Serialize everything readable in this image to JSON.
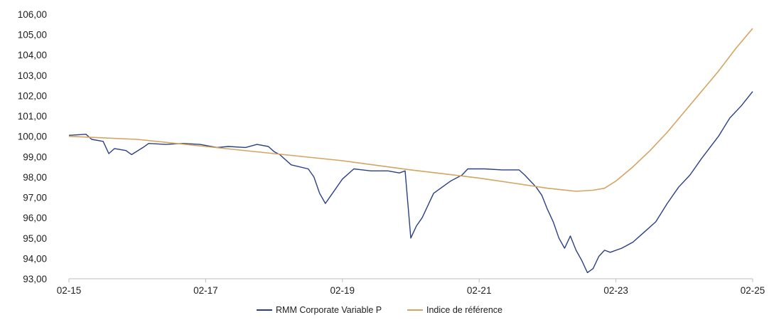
{
  "chart_data": {
    "type": "line",
    "title": "",
    "xlabel": "",
    "ylabel": "",
    "x_ticks": [
      "02-15",
      "02-17",
      "02-19",
      "02-21",
      "02-23",
      "02-25"
    ],
    "y_ticks": [
      "93,00",
      "94,00",
      "95,00",
      "96,00",
      "97,00",
      "98,00",
      "99,00",
      "100,00",
      "101,00",
      "102,00",
      "103,00",
      "104,00",
      "105,00",
      "106,00"
    ],
    "ylim": [
      93,
      106
    ],
    "xlim": [
      "2015-02",
      "2025-02"
    ],
    "grid": false,
    "legend_position": "bottom-center",
    "series": [
      {
        "name": "RMM Corporate Variable P",
        "color": "#2b3f87",
        "points": [
          [
            "2015-02",
            100.05
          ],
          [
            "2015-05",
            100.1
          ],
          [
            "2015-06",
            99.85
          ],
          [
            "2015-08",
            99.75
          ],
          [
            "2015-09",
            99.15
          ],
          [
            "2015-10",
            99.4
          ],
          [
            "2015-12",
            99.3
          ],
          [
            "2016-01",
            99.1
          ],
          [
            "2016-03",
            99.45
          ],
          [
            "2016-04",
            99.65
          ],
          [
            "2016-07",
            99.6
          ],
          [
            "2016-10",
            99.65
          ],
          [
            "2017-01",
            99.6
          ],
          [
            "2017-04",
            99.45
          ],
          [
            "2017-06",
            99.5
          ],
          [
            "2017-09",
            99.45
          ],
          [
            "2017-11",
            99.6
          ],
          [
            "2018-01",
            99.5
          ],
          [
            "2018-02",
            99.25
          ],
          [
            "2018-03",
            99.1
          ],
          [
            "2018-05",
            98.6
          ],
          [
            "2018-08",
            98.4
          ],
          [
            "2018-09",
            98.0
          ],
          [
            "2018-10",
            97.2
          ],
          [
            "2018-11",
            96.7
          ],
          [
            "2018-12",
            97.1
          ],
          [
            "2019-02",
            97.9
          ],
          [
            "2019-04",
            98.4
          ],
          [
            "2019-07",
            98.3
          ],
          [
            "2019-10",
            98.3
          ],
          [
            "2019-12",
            98.2
          ],
          [
            "2020-01",
            98.3
          ],
          [
            "2020-02",
            95.0
          ],
          [
            "2020-03",
            95.6
          ],
          [
            "2020-04",
            96.0
          ],
          [
            "2020-06",
            97.2
          ],
          [
            "2020-09",
            97.8
          ],
          [
            "2020-11",
            98.1
          ],
          [
            "2020-12",
            98.4
          ],
          [
            "2021-03",
            98.4
          ],
          [
            "2021-06",
            98.35
          ],
          [
            "2021-09",
            98.35
          ],
          [
            "2021-10",
            98.1
          ],
          [
            "2021-12",
            97.5
          ],
          [
            "2022-01",
            97.1
          ],
          [
            "2022-02",
            96.4
          ],
          [
            "2022-03",
            95.8
          ],
          [
            "2022-04",
            95.0
          ],
          [
            "2022-05",
            94.5
          ],
          [
            "2022-06",
            95.1
          ],
          [
            "2022-07",
            94.4
          ],
          [
            "2022-08",
            93.9
          ],
          [
            "2022-09",
            93.3
          ],
          [
            "2022-10",
            93.5
          ],
          [
            "2022-11",
            94.1
          ],
          [
            "2022-12",
            94.4
          ],
          [
            "2023-01",
            94.3
          ],
          [
            "2023-03",
            94.5
          ],
          [
            "2023-05",
            94.8
          ],
          [
            "2023-07",
            95.3
          ],
          [
            "2023-09",
            95.8
          ],
          [
            "2023-11",
            96.7
          ],
          [
            "2024-01",
            97.5
          ],
          [
            "2024-03",
            98.1
          ],
          [
            "2024-05",
            98.9
          ],
          [
            "2024-08",
            100.0
          ],
          [
            "2024-10",
            100.9
          ],
          [
            "2024-12",
            101.5
          ],
          [
            "2025-02",
            102.2
          ]
        ]
      },
      {
        "name": "Indice de référence",
        "color": "#d4a460",
        "points": [
          [
            "2015-02",
            100.0
          ],
          [
            "2016-02",
            99.85
          ],
          [
            "2017-02",
            99.5
          ],
          [
            "2018-02",
            99.15
          ],
          [
            "2019-02",
            98.8
          ],
          [
            "2020-02",
            98.35
          ],
          [
            "2021-02",
            97.95
          ],
          [
            "2021-08",
            97.7
          ],
          [
            "2022-02",
            97.45
          ],
          [
            "2022-07",
            97.3
          ],
          [
            "2022-10",
            97.35
          ],
          [
            "2022-12",
            97.45
          ],
          [
            "2023-02",
            97.8
          ],
          [
            "2023-05",
            98.5
          ],
          [
            "2023-08",
            99.3
          ],
          [
            "2023-11",
            100.2
          ],
          [
            "2024-02",
            101.2
          ],
          [
            "2024-05",
            102.2
          ],
          [
            "2024-08",
            103.2
          ],
          [
            "2024-11",
            104.3
          ],
          [
            "2025-02",
            105.3
          ]
        ]
      }
    ]
  }
}
